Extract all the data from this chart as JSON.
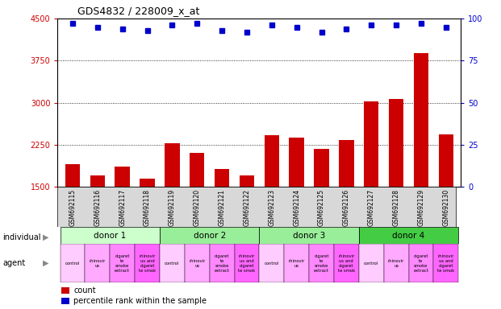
{
  "title": "GDS4832 / 228009_x_at",
  "samples": [
    "GSM692115",
    "GSM692116",
    "GSM692117",
    "GSM692118",
    "GSM692119",
    "GSM692120",
    "GSM692121",
    "GSM692122",
    "GSM692123",
    "GSM692124",
    "GSM692125",
    "GSM692126",
    "GSM692127",
    "GSM692128",
    "GSM692129",
    "GSM692130"
  ],
  "counts": [
    1900,
    1700,
    1870,
    1650,
    2280,
    2110,
    1820,
    1700,
    2420,
    2380,
    2180,
    2330,
    3020,
    3060,
    3880,
    2430
  ],
  "percentile_ranks": [
    97,
    95,
    94,
    93,
    96,
    97,
    93,
    92,
    96,
    95,
    92,
    94,
    96,
    96,
    97,
    95
  ],
  "bar_color": "#cc0000",
  "dot_color": "#0000cc",
  "ylim_left": [
    1500,
    4500
  ],
  "ylim_right": [
    0,
    100
  ],
  "yticks_left": [
    1500,
    2250,
    3000,
    3750,
    4500
  ],
  "yticks_right": [
    0,
    25,
    50,
    75,
    100
  ],
  "donors": [
    {
      "label": "donor 1",
      "start": 0,
      "end": 4,
      "color": "#ccffcc"
    },
    {
      "label": "donor 2",
      "start": 4,
      "end": 8,
      "color": "#99ee99"
    },
    {
      "label": "donor 3",
      "start": 8,
      "end": 12,
      "color": "#99ee99"
    },
    {
      "label": "donor 4",
      "start": 12,
      "end": 16,
      "color": "#44cc44"
    }
  ],
  "agent_labels": [
    "control",
    "rhinovir\nus",
    "cigaret\nte\nsmoke\nextract",
    "rhinovir\nus and\ncigaret\nte smok"
  ],
  "agent_colors": [
    "#ffccff",
    "#ffaaff",
    "#ff88ff",
    "#ff66ff"
  ],
  "tick_color_left": "#cc0000",
  "tick_color_right": "#0000cc",
  "legend_count_color": "#cc0000",
  "legend_dot_color": "#0000cc"
}
